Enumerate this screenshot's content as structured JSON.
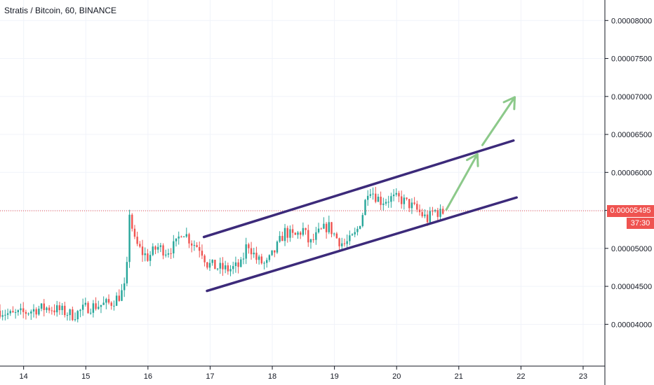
{
  "chart_data": {
    "type": "candlestick",
    "title": "Stratis / Bitcoin, 60, BINANCE",
    "x_ticks": [
      "14",
      "15",
      "16",
      "17",
      "18",
      "19",
      "20",
      "21",
      "22",
      "23"
    ],
    "y_ticks": [
      "0.00004000",
      "0.00004500",
      "0.00005000",
      "0.00005500",
      "0.00006000",
      "0.00006500",
      "0.00007000",
      "0.00007500",
      "0.00008000"
    ],
    "ylim": [
      3.45e-05,
      8.27e-05
    ],
    "xlim": [
      13.62,
      23.35
    ],
    "current_price": "0.00005495",
    "current_price_value": 5.495e-05,
    "countdown": "37:30",
    "colors": {
      "up": "#26a69a",
      "down": "#ef5350",
      "channel": "#3c2a7a",
      "arrow": "#8cc98a",
      "grid": "#f0f3fa",
      "price_line": "#ef5350"
    },
    "trend_channel": {
      "upper": [
        [
          16.9,
          5.15e-05
        ],
        [
          21.88,
          6.42e-05
        ]
      ],
      "lower": [
        [
          16.95,
          4.44e-05
        ],
        [
          21.93,
          5.67e-05
        ]
      ]
    },
    "projection_arrows": [
      {
        "from": [
          20.8,
          5.51e-05
        ],
        "to": [
          21.3,
          6.24e-05
        ]
      },
      {
        "from": [
          21.38,
          6.36e-05
        ],
        "to": [
          21.9,
          6.99e-05
        ]
      }
    ],
    "price_path": [
      [
        13.62,
        4.18e-05
      ],
      [
        13.8,
        4.12e-05
      ],
      [
        14.0,
        4.15e-05
      ],
      [
        14.2,
        4.2e-05
      ],
      [
        14.4,
        4.22e-05
      ],
      [
        14.6,
        4.18e-05
      ],
      [
        14.8,
        4.12e-05
      ],
      [
        15.0,
        4.22e-05
      ],
      [
        15.2,
        4.25e-05
      ],
      [
        15.4,
        4.28e-05
      ],
      [
        15.55,
        4.38e-05
      ],
      [
        15.65,
        4.52e-05
      ],
      [
        15.7,
        5.5e-05
      ],
      [
        15.78,
        5.1e-05
      ],
      [
        15.9,
        4.95e-05
      ],
      [
        16.0,
        4.88e-05
      ],
      [
        16.15,
        5.02e-05
      ],
      [
        16.3,
        4.96e-05
      ],
      [
        16.45,
        5.05e-05
      ],
      [
        16.55,
        5.25e-05
      ],
      [
        16.7,
        5.08e-05
      ],
      [
        16.85,
        5e-05
      ],
      [
        16.95,
        4.8e-05
      ],
      [
        17.1,
        4.75e-05
      ],
      [
        17.3,
        4.72e-05
      ],
      [
        17.5,
        4.78e-05
      ],
      [
        17.6,
        5.08e-05
      ],
      [
        17.75,
        4.85e-05
      ],
      [
        17.9,
        4.78e-05
      ],
      [
        18.05,
        4.98e-05
      ],
      [
        18.2,
        5.22e-05
      ],
      [
        18.35,
        5.15e-05
      ],
      [
        18.5,
        5.25e-05
      ],
      [
        18.6,
        5.05e-05
      ],
      [
        18.75,
        5.2e-05
      ],
      [
        18.9,
        5.3e-05
      ],
      [
        19.05,
        5.12e-05
      ],
      [
        19.15,
        5.05e-05
      ],
      [
        19.25,
        5.1e-05
      ],
      [
        19.35,
        5.2e-05
      ],
      [
        19.45,
        5.45e-05
      ],
      [
        19.55,
        5.82e-05
      ],
      [
        19.65,
        5.7e-05
      ],
      [
        19.75,
        5.62e-05
      ],
      [
        19.9,
        5.66e-05
      ],
      [
        20.05,
        5.65e-05
      ],
      [
        20.2,
        5.58e-05
      ],
      [
        20.3,
        5.52e-05
      ],
      [
        20.4,
        5.45e-05
      ],
      [
        20.5,
        5.38e-05
      ],
      [
        20.6,
        5.5e-05
      ],
      [
        20.7,
        5.46e-05
      ],
      [
        20.78,
        5.495e-05
      ]
    ]
  }
}
